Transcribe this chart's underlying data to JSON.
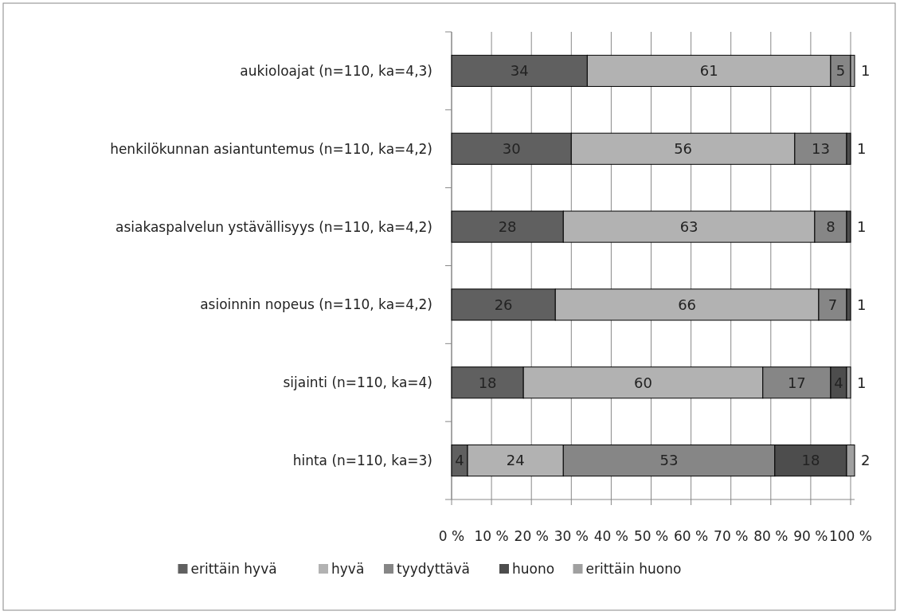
{
  "chart_data": {
    "type": "bar",
    "orientation": "horizontal",
    "stacked": true,
    "data_labels": true,
    "grid": "x",
    "legend": "bottom",
    "categories": [
      "aukioloajat (n=110, ka=4,3)",
      "henkilökunnan asiantuntemus (n=110, ka=4,2)",
      "asiakaspalvelun ystävällisyys (n=110, ka=4,2)",
      "asioinnin nopeus (n=110, ka=4,2)",
      "sijainti (n=110, ka=4)",
      "hinta (n=110, ka=3)"
    ],
    "series": [
      {
        "name": "erittäin hyvä",
        "color": "#606060",
        "values": [
          34,
          30,
          28,
          26,
          18,
          4
        ]
      },
      {
        "name": "hyvä",
        "color": "#b2b2b2",
        "values": [
          61,
          56,
          63,
          66,
          60,
          24
        ]
      },
      {
        "name": "tyydyttävä",
        "color": "#868686",
        "values": [
          5,
          13,
          8,
          7,
          17,
          53
        ]
      },
      {
        "name": "huono",
        "color": "#4d4d4d",
        "values": [
          null,
          1,
          1,
          1,
          4,
          18
        ]
      },
      {
        "name": "erittäin huono",
        "color": "#a0a0a0",
        "values": [
          1,
          null,
          null,
          null,
          1,
          2
        ]
      }
    ],
    "xlim": [
      0,
      101
    ],
    "xticks": [
      {
        "value": 0,
        "label": "0 %"
      },
      {
        "value": 10,
        "label": "10 %"
      },
      {
        "value": 20,
        "label": "20 %"
      },
      {
        "value": 30,
        "label": "30 %"
      },
      {
        "value": 40,
        "label": "40 %"
      },
      {
        "value": 50,
        "label": "50 %"
      },
      {
        "value": 60,
        "label": "60 %"
      },
      {
        "value": 70,
        "label": "70 %"
      },
      {
        "value": 80,
        "label": "80 %"
      },
      {
        "value": 90,
        "label": "90 %"
      },
      {
        "value": 100,
        "label": "100 %"
      }
    ]
  }
}
